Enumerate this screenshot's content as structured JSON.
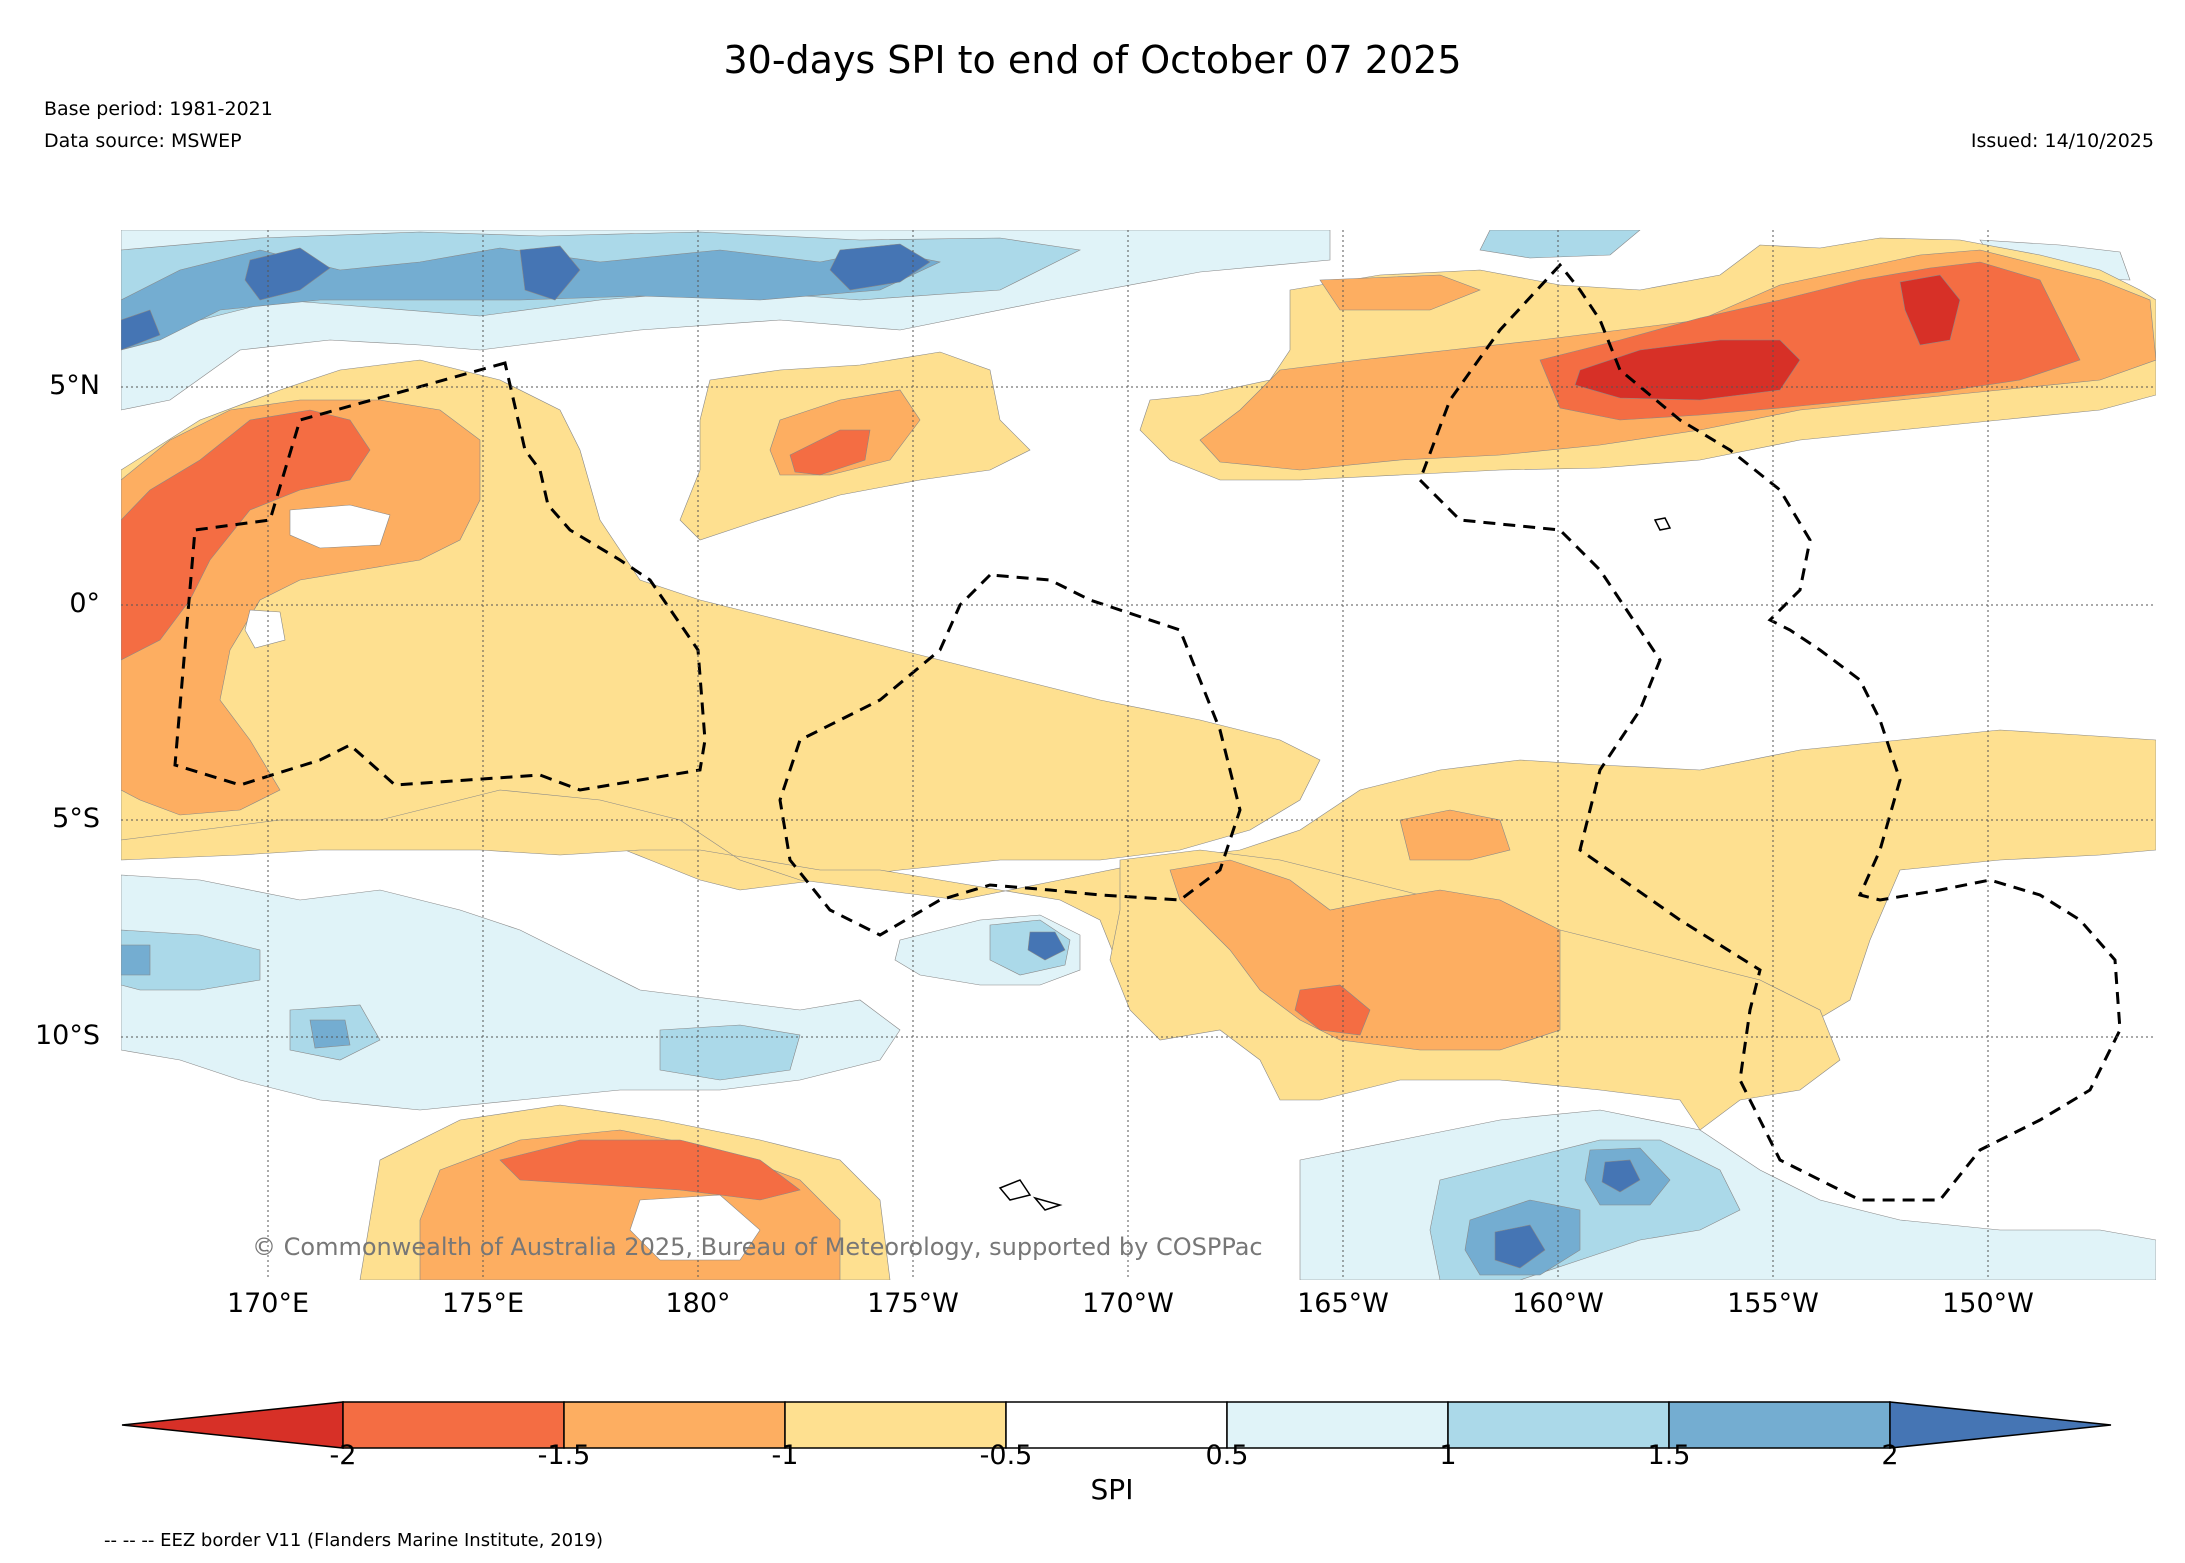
{
  "title": "30-days SPI to end of October 07 2025",
  "base_period": "Base period: 1981-2021",
  "data_source": "Data source: MSWEP",
  "issued": "Issued: 14/10/2025",
  "copyright": "© Commonwealth of Australia 2025, Bureau of Meteorology, supported by COSPPac",
  "eez_note": "-- -- -- EEZ border V11 (Flanders Marine Institute, 2019)",
  "map": {
    "lat_labels": [
      "5°N",
      "0°",
      "5°S",
      "10°S"
    ],
    "lon_labels": [
      "170°E",
      "175°E",
      "180°",
      "175°W",
      "170°W",
      "165°W",
      "160°W",
      "155°W",
      "150°W"
    ]
  },
  "colorbar": {
    "label": "SPI",
    "ticks": [
      "-2",
      "-1.5",
      "-1",
      "-0.5",
      "0.5",
      "1",
      "1.5",
      "2"
    ],
    "colors": {
      "lt_m2": "#d73027",
      "m2_m15": "#f46d43",
      "m15_m1": "#fdae61",
      "m1_m05": "#fee090",
      "m05_05": "#ffffff",
      "p05_1": "#e0f3f8",
      "p1_15": "#abd9e9",
      "p15_2": "#74add1",
      "gt_2": "#4575b4"
    }
  }
}
